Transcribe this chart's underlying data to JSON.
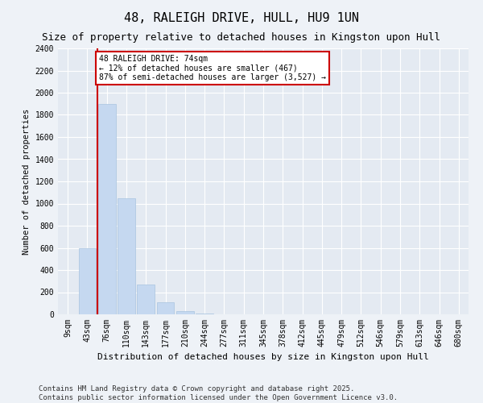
{
  "title": "48, RALEIGH DRIVE, HULL, HU9 1UN",
  "subtitle": "Size of property relative to detached houses in Kingston upon Hull",
  "xlabel": "Distribution of detached houses by size in Kingston upon Hull",
  "ylabel": "Number of detached properties",
  "categories": [
    "9sqm",
    "43sqm",
    "76sqm",
    "110sqm",
    "143sqm",
    "177sqm",
    "210sqm",
    "244sqm",
    "277sqm",
    "311sqm",
    "345sqm",
    "378sqm",
    "412sqm",
    "445sqm",
    "479sqm",
    "512sqm",
    "546sqm",
    "579sqm",
    "613sqm",
    "646sqm",
    "680sqm"
  ],
  "values": [
    0,
    600,
    1900,
    1050,
    270,
    110,
    30,
    10,
    0,
    0,
    0,
    0,
    0,
    0,
    0,
    0,
    0,
    0,
    0,
    0,
    0
  ],
  "bar_color": "#c5d8f0",
  "bar_edge_color": "#a8c4e0",
  "vline_index": 1.5,
  "vline_color": "#cc0000",
  "annotation_text": "48 RALEIGH DRIVE: 74sqm\n← 12% of detached houses are smaller (467)\n87% of semi-detached houses are larger (3,527) →",
  "annotation_box_color": "#ffffff",
  "annotation_box_edge": "#cc0000",
  "ylim": [
    0,
    2400
  ],
  "yticks": [
    0,
    200,
    400,
    600,
    800,
    1000,
    1200,
    1400,
    1600,
    1800,
    2000,
    2200,
    2400
  ],
  "footer": "Contains HM Land Registry data © Crown copyright and database right 2025.\nContains public sector information licensed under the Open Government Licence v3.0.",
  "bg_color": "#eef2f7",
  "plot_bg_color": "#e4eaf2",
  "grid_color": "#ffffff",
  "title_fontsize": 11,
  "subtitle_fontsize": 9,
  "axis_fontsize": 7,
  "ylabel_fontsize": 7.5,
  "xlabel_fontsize": 8,
  "footer_fontsize": 6.5,
  "annot_fontsize": 7
}
